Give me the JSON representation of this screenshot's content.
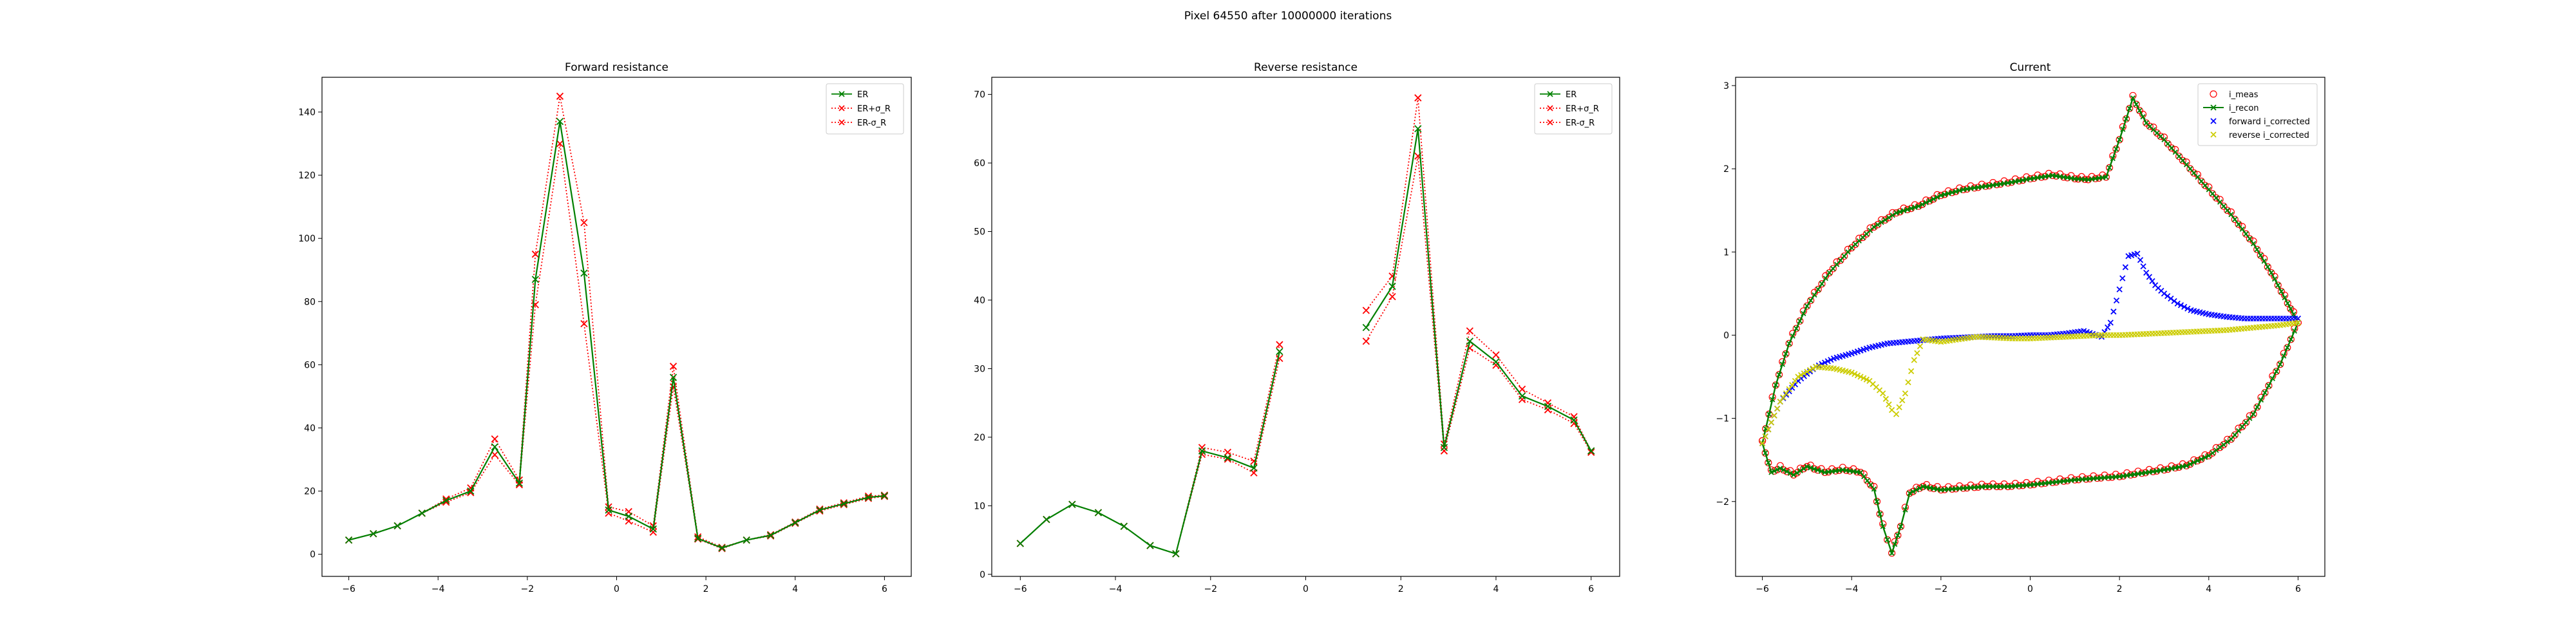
{
  "figure": {
    "suptitle": "Pixel 64550 after 10000000 iterations"
  },
  "chart_data": [
    {
      "type": "line",
      "title": "Forward resistance",
      "xlim": [
        -6.6,
        6.6
      ],
      "ylim": [
        -7,
        151
      ],
      "xticks": [
        -6,
        -4,
        -2,
        0,
        2,
        4,
        6
      ],
      "yticks": [
        0,
        20,
        40,
        60,
        80,
        100,
        120,
        140
      ],
      "xtick_labels": [
        "−6",
        "−4",
        "−2",
        "0",
        "2",
        "4",
        "6"
      ],
      "ytick_labels": [
        "0",
        "20",
        "40",
        "60",
        "80",
        "100",
        "120",
        "140"
      ],
      "legend_loc": "upper right",
      "x": [
        -6.0,
        -5.45,
        -4.91,
        -4.36,
        -3.82,
        -3.27,
        -2.73,
        -2.18,
        -1.82,
        -1.27,
        -0.73,
        -0.18,
        0.27,
        0.82,
        1.27,
        1.82,
        2.36,
        2.91,
        3.45,
        4.0,
        4.55,
        5.09,
        5.64,
        6.0
      ],
      "series": [
        {
          "name": "ER",
          "color": "#008000",
          "linestyle": "solid",
          "marker": "x",
          "values": [
            4.5,
            6.5,
            9,
            13,
            17,
            20,
            34,
            22.5,
            87,
            137,
            89,
            14,
            12,
            8,
            56,
            5,
            2,
            4.5,
            6,
            10,
            14,
            16,
            18,
            18.5
          ]
        },
        {
          "name": "ER+σ_R",
          "color": "#ff0000",
          "linestyle": "dotted",
          "marker": "x",
          "values": [
            4.5,
            6.5,
            9,
            13,
            17.5,
            21,
            36.5,
            23.5,
            95,
            145,
            105,
            15,
            13.5,
            9,
            59.5,
            5.5,
            2.2,
            4.5,
            6.2,
            10.2,
            14.3,
            16.3,
            18.4,
            18.7
          ]
        },
        {
          "name": "ER-σ_R",
          "color": "#ff0000",
          "linestyle": "dotted",
          "marker": "x",
          "values": [
            4.5,
            6.5,
            9,
            13,
            16.5,
            19.5,
            31.5,
            22,
            79,
            130,
            73,
            13,
            10.5,
            7,
            53,
            4.8,
            1.8,
            4.5,
            5.8,
            9.8,
            13.7,
            15.7,
            17.7,
            18.3
          ]
        }
      ]
    },
    {
      "type": "line",
      "title": "Reverse resistance",
      "xlim": [
        -6.6,
        6.6
      ],
      "ylim": [
        -0.3,
        72.5
      ],
      "xticks": [
        -6,
        -4,
        -2,
        0,
        2,
        4,
        6
      ],
      "yticks": [
        0,
        10,
        20,
        30,
        40,
        50,
        60,
        70
      ],
      "xtick_labels": [
        "−6",
        "−4",
        "−2",
        "0",
        "2",
        "4",
        "6"
      ],
      "ytick_labels": [
        "0",
        "10",
        "20",
        "30",
        "40",
        "50",
        "60",
        "70"
      ],
      "legend_loc": "upper right",
      "x": [
        -6.0,
        -5.45,
        -4.91,
        -4.36,
        -3.82,
        -3.27,
        -2.73,
        -2.18,
        -1.64,
        -1.09,
        -0.55,
        1.27,
        1.82,
        2.36,
        2.91,
        3.45,
        4.0,
        4.55,
        5.09,
        5.64,
        6.0
      ],
      "gap_before_index": 11,
      "series": [
        {
          "name": "ER",
          "color": "#008000",
          "linestyle": "solid",
          "marker": "x",
          "values": [
            4.5,
            8,
            10.2,
            9,
            7,
            4.2,
            3,
            18,
            17,
            15.5,
            32.5,
            36,
            42,
            65,
            18.5,
            34,
            31,
            26,
            24.5,
            22.5,
            18
          ]
        },
        {
          "name": "ER+σ_R",
          "color": "#ff0000",
          "linestyle": "dotted",
          "marker": "x",
          "values": [
            4.5,
            8,
            10.2,
            9,
            7,
            4.2,
            3,
            18.5,
            17.8,
            16.5,
            33.5,
            38.5,
            43.5,
            69.5,
            19,
            35.5,
            32,
            27,
            25,
            23,
            18
          ]
        },
        {
          "name": "ER-σ_R",
          "color": "#ff0000",
          "linestyle": "dotted",
          "marker": "x",
          "values": [
            4.5,
            8,
            10.2,
            9,
            7,
            4.2,
            3,
            17.5,
            16.8,
            14.8,
            31.5,
            34,
            40.5,
            61,
            18,
            33,
            30.5,
            25.5,
            24,
            22,
            17.8
          ]
        }
      ]
    },
    {
      "type": "scatter",
      "title": "Current",
      "xlim": [
        -6.6,
        6.6
      ],
      "ylim": [
        -2.9,
        3.1
      ],
      "xticks": [
        -6,
        -4,
        -2,
        0,
        2,
        4,
        6
      ],
      "yticks": [
        -2,
        -1,
        0,
        1,
        2,
        3
      ],
      "xtick_labels": [
        "−6",
        "−4",
        "−2",
        "0",
        "2",
        "4",
        "6"
      ],
      "ytick_labels": [
        "−2",
        "−1",
        "0",
        "1",
        "2",
        "3"
      ],
      "legend_loc": "upper right",
      "legend": [
        {
          "name": "i_meas",
          "color": "#ff0000",
          "marker": "o"
        },
        {
          "name": "i_recon",
          "color": "#008000",
          "marker": "x-line"
        },
        {
          "name": "forward i_corrected",
          "color": "#0000ff",
          "marker": "x"
        },
        {
          "name": "reverse i_corrected",
          "color": "#cccc00",
          "marker": "x"
        }
      ],
      "upper_branch": {
        "x": [
          -6.0,
          -5.7,
          -5.4,
          -5.0,
          -4.5,
          -4.0,
          -3.5,
          -3.0,
          -2.5,
          -2.0,
          -1.5,
          -1.0,
          -0.5,
          0.0,
          0.5,
          1.0,
          1.3,
          1.7,
          2.0,
          2.3,
          2.6,
          3.0,
          3.5,
          4.0,
          4.5,
          5.0,
          5.4,
          5.7,
          5.9,
          6.0
        ],
        "values": [
          -1.3,
          -0.6,
          -0.1,
          0.35,
          0.75,
          1.05,
          1.3,
          1.47,
          1.55,
          1.68,
          1.75,
          1.79,
          1.83,
          1.88,
          1.92,
          1.88,
          1.87,
          1.9,
          2.35,
          2.85,
          2.55,
          2.35,
          2.05,
          1.75,
          1.45,
          1.1,
          0.75,
          0.45,
          0.25,
          0.15
        ]
      },
      "lower_branch": {
        "x": [
          6.0,
          5.6,
          5.0,
          4.5,
          4.0,
          3.5,
          3.0,
          2.5,
          2.0,
          1.5,
          1.0,
          0.5,
          0.0,
          -0.5,
          -1.0,
          -1.5,
          -2.0,
          -2.4,
          -2.7,
          -2.9,
          -3.1,
          -3.3,
          -3.5,
          -3.8,
          -4.2,
          -4.6,
          -5.0,
          -5.3,
          -5.6,
          -5.8,
          -6.0
        ],
        "values": [
          0.15,
          -0.35,
          -0.95,
          -1.25,
          -1.45,
          -1.57,
          -1.62,
          -1.66,
          -1.7,
          -1.72,
          -1.74,
          -1.77,
          -1.8,
          -1.82,
          -1.82,
          -1.84,
          -1.86,
          -1.82,
          -1.9,
          -2.3,
          -2.62,
          -2.3,
          -1.85,
          -1.65,
          -1.62,
          -1.65,
          -1.58,
          -1.68,
          -1.6,
          -1.65,
          -1.3
        ]
      },
      "forward_corrected": {
        "x": [
          -6.0,
          -5.6,
          -5.2,
          -4.8,
          -4.4,
          -4.0,
          -3.6,
          -3.2,
          -2.8,
          -2.4,
          -2.0,
          -1.6,
          -1.2,
          -0.8,
          -0.4,
          0.0,
          0.4,
          0.8,
          1.2,
          1.6,
          1.8,
          2.0,
          2.2,
          2.4,
          2.6,
          2.8,
          3.0,
          3.3,
          3.6,
          4.0,
          4.4,
          4.8,
          5.2,
          5.6,
          6.0
        ],
        "values": [
          -1.3,
          -0.8,
          -0.55,
          -0.38,
          -0.28,
          -0.22,
          -0.15,
          -0.1,
          -0.08,
          -0.06,
          -0.04,
          -0.03,
          -0.02,
          -0.01,
          -0.01,
          0.0,
          0.0,
          0.02,
          0.05,
          -0.02,
          0.15,
          0.55,
          0.95,
          0.98,
          0.75,
          0.6,
          0.5,
          0.38,
          0.3,
          0.25,
          0.22,
          0.2,
          0.2,
          0.2,
          0.2
        ]
      },
      "reverse_corrected": {
        "x": [
          6.0,
          5.6,
          5.2,
          4.8,
          4.4,
          4.0,
          3.6,
          3.2,
          2.8,
          2.4,
          2.0,
          1.6,
          1.2,
          0.8,
          0.4,
          0.0,
          -0.4,
          -0.8,
          -1.2,
          -1.6,
          -2.0,
          -2.4,
          -2.6,
          -2.8,
          -3.0,
          -3.1,
          -3.3,
          -3.6,
          -4.0,
          -4.4,
          -4.8,
          -5.2,
          -5.6,
          -6.0
        ],
        "values": [
          0.15,
          0.12,
          0.1,
          0.08,
          0.06,
          0.05,
          0.04,
          0.03,
          0.02,
          0.01,
          0.0,
          0.0,
          -0.01,
          -0.02,
          -0.03,
          -0.04,
          -0.04,
          -0.03,
          -0.02,
          -0.05,
          -0.08,
          -0.05,
          -0.3,
          -0.7,
          -0.95,
          -0.9,
          -0.7,
          -0.55,
          -0.45,
          -0.4,
          -0.38,
          -0.5,
          -0.8,
          -1.3
        ]
      }
    }
  ]
}
